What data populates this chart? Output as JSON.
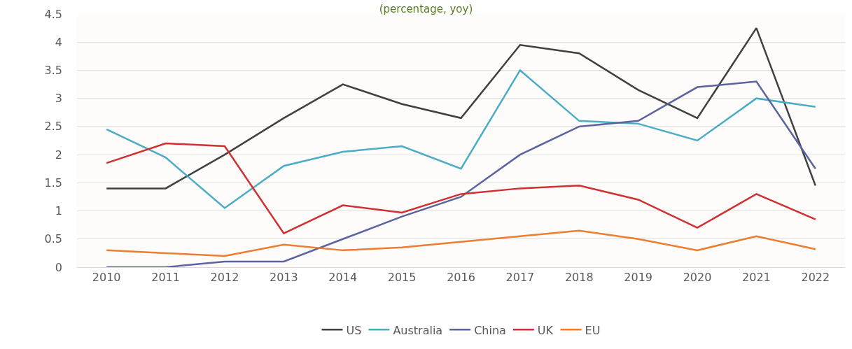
{
  "chart_data": {
    "type": "line",
    "title": "(percentage, yoy)",
    "categories": [
      "2010",
      "2011",
      "2012",
      "2013",
      "2014",
      "2015",
      "2016",
      "2017",
      "2018",
      "2019",
      "2020",
      "2021",
      "2022"
    ],
    "series": [
      {
        "name": "US",
        "color": "#404040",
        "values": [
          1.4,
          1.4,
          2.0,
          2.65,
          3.25,
          2.9,
          2.65,
          3.95,
          3.8,
          3.15,
          2.65,
          4.25,
          1.45
        ]
      },
      {
        "name": "Australia",
        "color": "#4bacc6",
        "values": [
          2.45,
          1.95,
          1.05,
          1.8,
          2.05,
          2.15,
          1.75,
          3.5,
          2.6,
          2.55,
          2.25,
          3.0,
          2.85
        ]
      },
      {
        "name": "China",
        "color": "#5b63a0",
        "values": [
          0,
          0,
          0.1,
          0.1,
          0.5,
          0.9,
          1.25,
          2.0,
          2.5,
          2.6,
          3.2,
          3.3,
          1.75
        ]
      },
      {
        "name": "UK",
        "color": "#d03030",
        "values": [
          1.85,
          2.2,
          2.15,
          0.6,
          1.1,
          0.97,
          1.3,
          1.4,
          1.45,
          1.2,
          0.7,
          1.3,
          0.85
        ]
      },
      {
        "name": "EU",
        "color": "#ed7d31",
        "values": [
          0.3,
          0.25,
          0.2,
          0.4,
          0.3,
          0.35,
          0.45,
          0.55,
          0.65,
          0.5,
          0.3,
          0.55,
          0.32
        ]
      }
    ],
    "ylim": [
      0,
      4.5
    ],
    "yticks": [
      0,
      0.5,
      1,
      1.5,
      2,
      2.5,
      3,
      3.5,
      4,
      4.5
    ],
    "grid": "y",
    "legend": "bottom",
    "marker": "none",
    "line_style": "solid"
  }
}
